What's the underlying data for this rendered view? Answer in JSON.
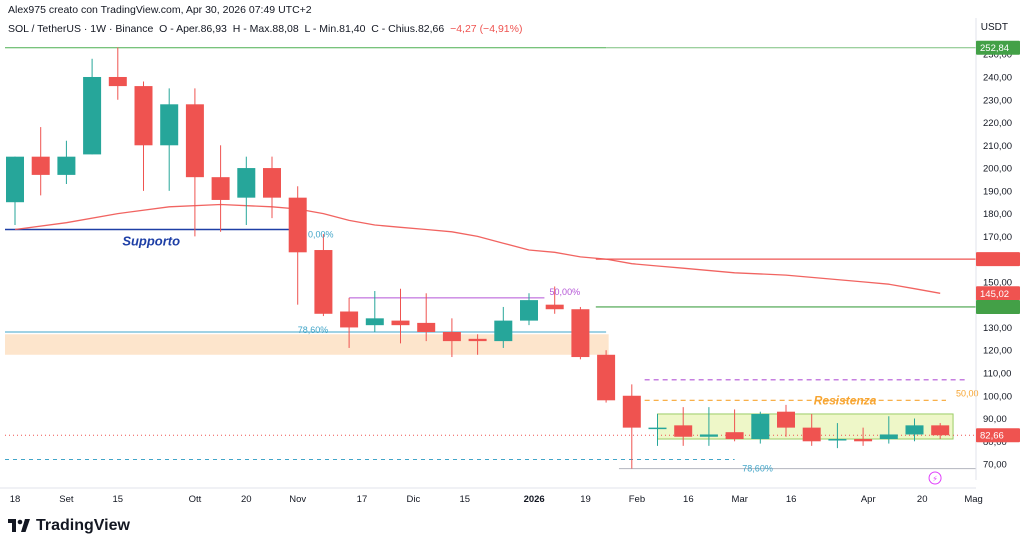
{
  "header": {
    "author_line": "Alex975 creato con TradingView.com, Apr 30, 2026 07:49 UTC+2",
    "symbol": "SOL / TetherUS · 1W · Binance",
    "open_label": "O - Aper.",
    "open": "86,93",
    "high_label": "H - Max.",
    "high": "88,08",
    "low_label": "L - Min.",
    "low": "81,40",
    "close_label": "C - Chius.",
    "close": "82,66",
    "change": "−4,27 (−4,91%)",
    "currency": "USDT"
  },
  "branding": {
    "logo_text": "TradingView"
  },
  "colors": {
    "up": "#26a69a",
    "down": "#ef5350",
    "ma": "#ef5350",
    "support_line": "#1e3fa6",
    "green_line": "#4caf50",
    "purple": "#b455d6",
    "orange": "#f7a531",
    "cyan": "#42a5c8",
    "zone_orange": "#fde5cc",
    "zone_green": "#eef7c8"
  },
  "chart_data": {
    "type": "candlestick",
    "title": "SOL / TetherUS · 1W · Binance",
    "ylabel": "USDT",
    "ylim": [
      63,
      258
    ],
    "y_ticks": [
      "70,00",
      "80,00",
      "90,00",
      "100,00",
      "110,00",
      "120,00",
      "130,00",
      "140,00",
      "150,00",
      "160,00",
      "170,00",
      "180,00",
      "190,00",
      "200,00",
      "210,00",
      "220,00",
      "230,00",
      "240,00",
      "250,00"
    ],
    "y_tick_values": [
      70,
      80,
      90,
      100,
      110,
      120,
      130,
      140,
      150,
      160,
      170,
      180,
      190,
      200,
      210,
      220,
      230,
      240,
      250
    ],
    "x_ticks": [
      {
        "label": "18",
        "week": 0
      },
      {
        "label": "Set",
        "week": 2
      },
      {
        "label": "15",
        "week": 4
      },
      {
        "label": "Ott",
        "week": 7
      },
      {
        "label": "20",
        "week": 9
      },
      {
        "label": "Nov",
        "week": 11
      },
      {
        "label": "17",
        "week": 13.5
      },
      {
        "label": "Dic",
        "week": 15.5
      },
      {
        "label": "15",
        "week": 17.5
      },
      {
        "label": "2026",
        "week": 20.2
      },
      {
        "label": "19",
        "week": 22.2
      },
      {
        "label": "Feb",
        "week": 24.2
      },
      {
        "label": "16",
        "week": 26.2
      },
      {
        "label": "Mar",
        "week": 28.2
      },
      {
        "label": "16",
        "week": 30.2
      },
      {
        "label": "Apr",
        "week": 33.2
      },
      {
        "label": "20",
        "week": 35.3
      },
      {
        "label": "Mag",
        "week": 37.3
      }
    ],
    "candles": [
      {
        "o": 185,
        "h": 205,
        "l": 175,
        "c": 205
      },
      {
        "o": 205,
        "h": 218,
        "l": 188,
        "c": 197
      },
      {
        "o": 197,
        "h": 212,
        "l": 193,
        "c": 205
      },
      {
        "o": 206,
        "h": 248,
        "l": 206,
        "c": 240
      },
      {
        "o": 240,
        "h": 253,
        "l": 230,
        "c": 236
      },
      {
        "o": 236,
        "h": 238,
        "l": 190,
        "c": 210
      },
      {
        "o": 210,
        "h": 235,
        "l": 190,
        "c": 228
      },
      {
        "o": 228,
        "h": 235,
        "l": 170,
        "c": 196
      },
      {
        "o": 196,
        "h": 210,
        "l": 172,
        "c": 186
      },
      {
        "o": 187,
        "h": 205,
        "l": 175,
        "c": 200
      },
      {
        "o": 200,
        "h": 205,
        "l": 178,
        "c": 187
      },
      {
        "o": 187,
        "h": 192,
        "l": 140,
        "c": 163
      },
      {
        "o": 164,
        "h": 171,
        "l": 135,
        "c": 136
      },
      {
        "o": 137,
        "h": 143,
        "l": 121,
        "c": 130
      },
      {
        "o": 131,
        "h": 146,
        "l": 128,
        "c": 134
      },
      {
        "o": 133,
        "h": 147,
        "l": 123,
        "c": 131
      },
      {
        "o": 132,
        "h": 145,
        "l": 124,
        "c": 128
      },
      {
        "o": 128,
        "h": 134,
        "l": 117,
        "c": 124
      },
      {
        "o": 125,
        "h": 127,
        "l": 118,
        "c": 124
      },
      {
        "o": 124,
        "h": 139,
        "l": 121,
        "c": 133
      },
      {
        "o": 133,
        "h": 145,
        "l": 131,
        "c": 142
      },
      {
        "o": 140,
        "h": 148,
        "l": 136,
        "c": 138
      },
      {
        "o": 138,
        "h": 139,
        "l": 116,
        "c": 117
      },
      {
        "o": 118,
        "h": 120,
        "l": 97,
        "c": 98
      },
      {
        "o": 100,
        "h": 105,
        "l": 68,
        "c": 86
      },
      {
        "o": 86,
        "h": 92,
        "l": 78,
        "c": 86
      },
      {
        "o": 87,
        "h": 95,
        "l": 78,
        "c": 82
      },
      {
        "o": 82,
        "h": 95,
        "l": 78,
        "c": 83
      },
      {
        "o": 84,
        "h": 94,
        "l": 80,
        "c": 81
      },
      {
        "o": 81,
        "h": 93,
        "l": 79,
        "c": 92
      },
      {
        "o": 93,
        "h": 96,
        "l": 82,
        "c": 86
      },
      {
        "o": 86,
        "h": 92,
        "l": 78,
        "c": 80
      },
      {
        "o": 81,
        "h": 88,
        "l": 77,
        "c": 81
      },
      {
        "o": 81,
        "h": 86,
        "l": 78,
        "c": 80
      },
      {
        "o": 81,
        "h": 91,
        "l": 79,
        "c": 83
      },
      {
        "o": 83,
        "h": 90,
        "l": 80,
        "c": 87
      },
      {
        "o": 87,
        "h": 88,
        "l": 81,
        "c": 82.66
      }
    ],
    "moving_average": [
      {
        "week": 0,
        "v": 173
      },
      {
        "week": 2,
        "v": 176
      },
      {
        "week": 4,
        "v": 180
      },
      {
        "week": 6,
        "v": 183
      },
      {
        "week": 8,
        "v": 184
      },
      {
        "week": 10,
        "v": 183
      },
      {
        "week": 11,
        "v": 182
      },
      {
        "week": 12,
        "v": 180
      },
      {
        "week": 13,
        "v": 177
      },
      {
        "week": 14,
        "v": 175
      },
      {
        "week": 15,
        "v": 174
      },
      {
        "week": 16,
        "v": 173
      },
      {
        "week": 17,
        "v": 172
      },
      {
        "week": 18,
        "v": 170
      },
      {
        "week": 19,
        "v": 167
      },
      {
        "week": 20,
        "v": 164
      },
      {
        "week": 21,
        "v": 163
      },
      {
        "week": 22,
        "v": 161
      },
      {
        "week": 23,
        "v": 160
      },
      {
        "week": 24,
        "v": 158
      },
      {
        "week": 25,
        "v": 157
      },
      {
        "week": 26,
        "v": 156
      },
      {
        "week": 28,
        "v": 154
      },
      {
        "week": 30,
        "v": 153
      },
      {
        "week": 31,
        "v": 152
      },
      {
        "week": 32,
        "v": 151
      },
      {
        "week": 33,
        "v": 150
      },
      {
        "week": 34,
        "v": 149
      },
      {
        "week": 35,
        "v": 147
      },
      {
        "week": 36,
        "v": 145
      }
    ],
    "price_labels": {
      "top_line": "252,84",
      "ma_value": "145,02",
      "last_price": "82,66"
    },
    "annotations": {
      "support": "Supporto",
      "resistance": "Resistenza",
      "fib_0": "0,00%",
      "fib_786_a": "78,60%",
      "fib_50_a": "50,00%",
      "fib_786_b": "78,60%",
      "fib_50_b": "50,00"
    },
    "levels": {
      "top_green": 252.84,
      "red_horizontal": 160,
      "green_mid": 139,
      "support": 173,
      "fib_0": 173,
      "zone_orange": [
        118,
        127
      ],
      "cyan_top": 128,
      "purple_top": 143,
      "purple_bottom": 146,
      "zone_green": [
        81,
        92
      ],
      "resistance_dash": 107,
      "orange_dash": 98,
      "cyan_dashed_low": 72,
      "red_dotted": 82.66,
      "gray_low": 68
    }
  }
}
